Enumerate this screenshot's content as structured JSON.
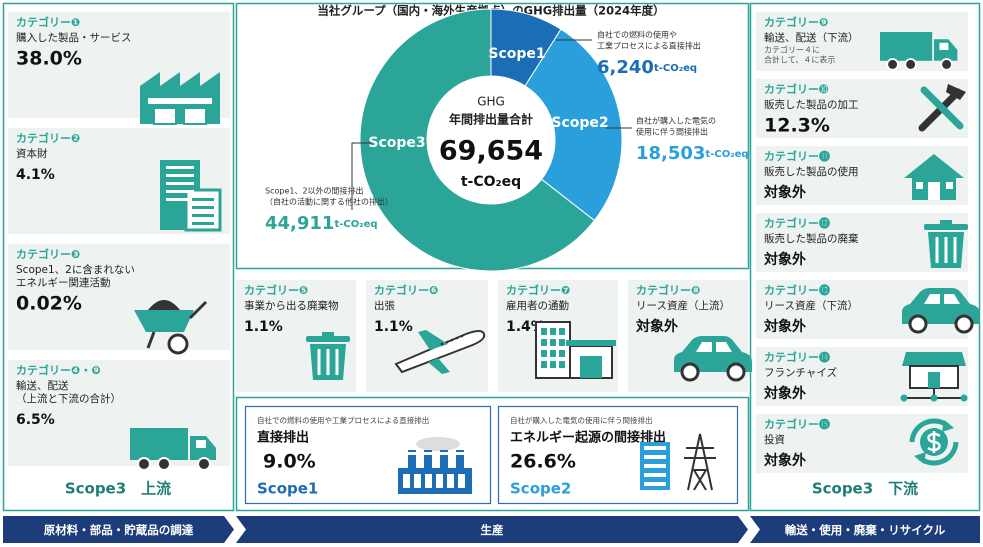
{
  "title": "当社グループ（国内・海外生産拠点）のGHG排出量（2024年度）",
  "total": {
    "heading": [
      "GHG",
      "年間排出量合計"
    ],
    "value": 69654,
    "label": "69,654",
    "unit": "t-CO₂eq"
  },
  "scopes": [
    {
      "name": "Scope1",
      "color": "#1b6db5",
      "description": [
        "自社での燃料の使用や",
        "工業プロセスによる直接排出"
      ],
      "value": 6240,
      "label": "6,240",
      "unit": "t-CO₂eq"
    },
    {
      "name": "Scope2",
      "color": "#2a9fdb",
      "description": [
        "自社が購入した電気の",
        "使用に伴う間接排出"
      ],
      "value": 18503,
      "label": "18,503",
      "unit": "t-CO₂eq"
    },
    {
      "name": "Scope3",
      "color": "#2aa597",
      "description": [
        "Scope1、2以外の間接排出",
        "（自社の活動に関する他社の排出）"
      ],
      "value": 44911,
      "label": "44,911",
      "unit": "t-CO₂eq"
    }
  ],
  "upstream": {
    "categories": [
      {
        "label": "カテゴリー❶",
        "name": [
          "購入した製品・サービス"
        ],
        "value": "38.0%"
      },
      {
        "label": "カテゴリー❷",
        "name": [
          "資本財"
        ],
        "value": "4.1%"
      },
      {
        "label": "カテゴリー❸",
        "name": [
          "Scope1、2に含まれない",
          "エネルギー関連活動"
        ],
        "value": "0.02%"
      },
      {
        "label": "カテゴリー❹・❾",
        "name": [
          "輸送、配送",
          "（上流と下流の合計）"
        ],
        "value": "6.5%"
      }
    ],
    "footer": "Scope3　上流"
  },
  "production": {
    "categories": [
      {
        "label": "カテゴリー❺",
        "name": [
          "事業から出る廃棄物"
        ],
        "value": "1.1%"
      },
      {
        "label": "カテゴリー❻",
        "name": [
          "出張"
        ],
        "value": "1.1%"
      },
      {
        "label": "カテゴリー❼",
        "name": [
          "雇用者の通勤"
        ],
        "value": "1.4%"
      },
      {
        "label": "カテゴリー❽",
        "name": [
          "リース資産（上流）"
        ],
        "value": "対象外"
      }
    ],
    "scope_boxes": [
      {
        "note": "自社での燃料の使用や工業プロセスによる直接排出",
        "title": "直接排出",
        "value": "9.0%",
        "scope": "Scope1"
      },
      {
        "note": "自社が購入した電気の使用に伴う間接排出",
        "title": "エネルギー起源の間接排出",
        "value": "26.6%",
        "scope": "Scope2"
      }
    ]
  },
  "downstream": {
    "categories": [
      {
        "label": "カテゴリー❾",
        "name": [
          "輸送、配送（下流）"
        ],
        "note": [
          "カテゴリー４に",
          "合計して、４に表示"
        ]
      },
      {
        "label": "カテゴリー➓",
        "name": [
          "販売した製品の加工"
        ],
        "value": "12.3%"
      },
      {
        "label": "カテゴリー⓫",
        "name": [
          "販売した製品の使用"
        ],
        "value": "対象外"
      },
      {
        "label": "カテゴリー⓬",
        "name": [
          "販売した製品の廃棄"
        ],
        "value": "対象外"
      },
      {
        "label": "カテゴリー⓭",
        "name": [
          "リース資産（下流）"
        ],
        "value": "対象外"
      },
      {
        "label": "カテゴリー⓮",
        "name": [
          "フランチャイズ"
        ],
        "value": "対象外"
      },
      {
        "label": "カテゴリー⓯",
        "name": [
          "投資"
        ],
        "value": "対象外"
      }
    ],
    "footer": "Scope3　下流"
  },
  "stages": [
    "原材料・部品・貯蔵品の調達",
    "生産",
    "輸送・使用・廃棄・リサイクル"
  ]
}
